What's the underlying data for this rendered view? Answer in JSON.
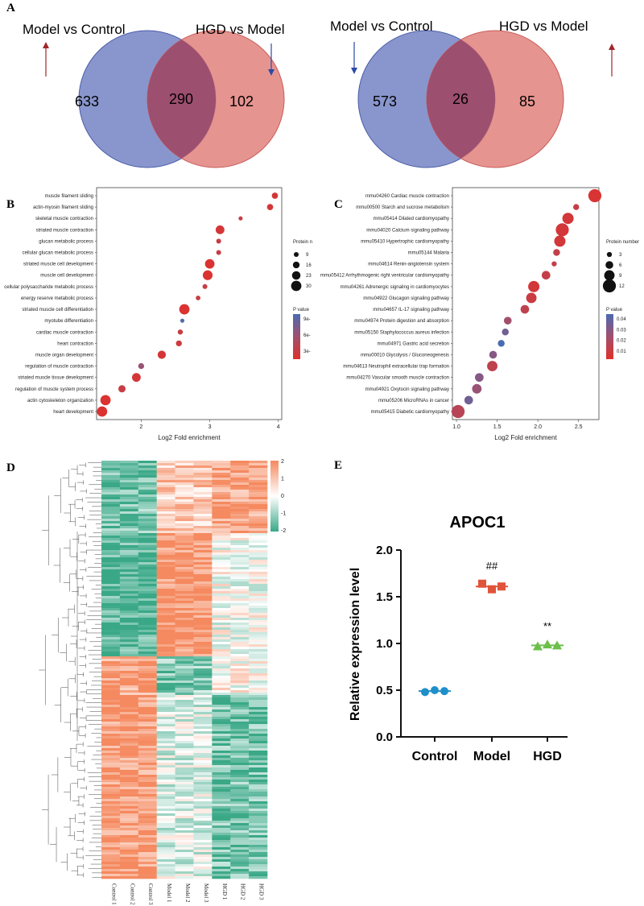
{
  "panels": {
    "a": "A",
    "b": "B",
    "c": "C",
    "d": "D",
    "e": "E"
  },
  "venn_up": {
    "left_label": "Model vs Control",
    "right_label": "HGD vs Model",
    "left_only": "633",
    "overlap": "290",
    "right_only": "102",
    "left_arrow": "up",
    "right_arrow": "down"
  },
  "venn_down": {
    "left_label": "Model vs Control",
    "right_label": "HGD vs Model",
    "left_only": "573",
    "overlap": "26",
    "right_only": "85",
    "left_arrow": "down",
    "right_arrow": "up"
  },
  "colors": {
    "venn_left": "#6f7fc2",
    "venn_right": "#e07c78",
    "venn_overlap": "#9a4c6e",
    "arrow_up": "#a0262a",
    "arrow_down": "#2a4aa8",
    "heat_high": "#f5895f",
    "heat_mid": "#ffffff",
    "heat_low": "#3aa887",
    "control": "#1f8fc9",
    "model": "#e0543a",
    "hgd": "#6cbf4a"
  },
  "chart_data": [
    {
      "id": "B",
      "type": "scatter",
      "xlabel": "Log2 Fold enrichment",
      "xlim": [
        1.35,
        4.05
      ],
      "xticks": [
        "2",
        "3",
        "4"
      ],
      "size_legend_title": "Protein n",
      "size_legend": [
        "9",
        "16",
        "23",
        "30"
      ],
      "color_legend_title": "P value",
      "color_legend": [
        "9e-",
        "6e-",
        "3e-"
      ],
      "terms": [
        {
          "label": "muscle filament sliding",
          "x": 3.95,
          "size": 14,
          "p": 0.1
        },
        {
          "label": "actin-myosin filament sliding",
          "x": 3.88,
          "size": 14,
          "p": 0.1
        },
        {
          "label": "skeletal muscle contraction",
          "x": 3.45,
          "size": 6,
          "p": 0.2
        },
        {
          "label": "striated muscle contraction",
          "x": 3.15,
          "size": 24,
          "p": 0.1
        },
        {
          "label": "glucan metabolic process",
          "x": 3.13,
          "size": 9,
          "p": 0.2
        },
        {
          "label": "cellular glucan metabolic process",
          "x": 3.13,
          "size": 9,
          "p": 0.2
        },
        {
          "label": "striated muscle cell development",
          "x": 3.0,
          "size": 27,
          "p": 0.05
        },
        {
          "label": "muscle cell development",
          "x": 2.97,
          "size": 28,
          "p": 0.05
        },
        {
          "label": "cellular polysaccharide metabolic process",
          "x": 2.93,
          "size": 9,
          "p": 0.2
        },
        {
          "label": "energy reserve metabolic process",
          "x": 2.83,
          "size": 8,
          "p": 0.2
        },
        {
          "label": "striated muscle cell differentiation",
          "x": 2.63,
          "size": 30,
          "p": 0.05
        },
        {
          "label": "myotube differentiation",
          "x": 2.6,
          "size": 6,
          "p": 0.95
        },
        {
          "label": "cardiac muscle contraction",
          "x": 2.57,
          "size": 10,
          "p": 0.2
        },
        {
          "label": "heart contraction",
          "x": 2.55,
          "size": 13,
          "p": 0.15
        },
        {
          "label": "muscle organ development",
          "x": 2.3,
          "size": 22,
          "p": 0.1
        },
        {
          "label": "regulation of muscle contraction",
          "x": 2.0,
          "size": 13,
          "p": 0.55
        },
        {
          "label": "striated muscle tissue development",
          "x": 1.93,
          "size": 24,
          "p": 0.1
        },
        {
          "label": "regulation of muscle system process",
          "x": 1.72,
          "size": 18,
          "p": 0.2
        },
        {
          "label": "actin cytoskeleton organization",
          "x": 1.48,
          "size": 30,
          "p": 0.05
        },
        {
          "label": "heart development",
          "x": 1.43,
          "size": 30,
          "p": 0.05
        }
      ]
    },
    {
      "id": "C",
      "type": "scatter",
      "xlabel": "Log2 Fold enrichment",
      "xlim": [
        0.95,
        2.75
      ],
      "xticks": [
        "1.0",
        "1.5",
        "2.0",
        "2.5"
      ],
      "size_legend_title": "Protein number",
      "size_legend": [
        "3",
        "6",
        "9",
        "12"
      ],
      "color_legend_title": "P value",
      "color_legend": [
        "0.04",
        "0.03",
        "0.02",
        "0.01"
      ],
      "terms": [
        {
          "label": "mmu04260 Cardiac muscle contraction",
          "x": 2.7,
          "size": 12,
          "p": 0.003
        },
        {
          "label": "mmu00500 Starch and sucrose metabolism",
          "x": 2.47,
          "size": 4,
          "p": 0.01
        },
        {
          "label": "mmu05414 Dilated cardiomyopathy",
          "x": 2.37,
          "size": 10,
          "p": 0.005
        },
        {
          "label": "mmu04020 Calcium signaling pathway",
          "x": 2.3,
          "size": 12,
          "p": 0.005
        },
        {
          "label": "mmu05410 Hypertrophic cardiomyopathy",
          "x": 2.27,
          "size": 10,
          "p": 0.005
        },
        {
          "label": "mmu05144 Malaria",
          "x": 2.23,
          "size": 5,
          "p": 0.01
        },
        {
          "label": "mmu04614 Renin-angiotensin system",
          "x": 2.2,
          "size": 3,
          "p": 0.01
        },
        {
          "label": "mmu05412 Arrhythmogenic right ventricular cardiomyopathy",
          "x": 2.1,
          "size": 7,
          "p": 0.01
        },
        {
          "label": "mmu04261 Adrenergic signaling in cardiomyocytes",
          "x": 1.95,
          "size": 10,
          "p": 0.005
        },
        {
          "label": "mmu04922 Glucagon signaling pathway",
          "x": 1.92,
          "size": 9,
          "p": 0.008
        },
        {
          "label": "mmu04657 IL-17 signaling pathway",
          "x": 1.84,
          "size": 7,
          "p": 0.012
        },
        {
          "label": "mmu04974 Protein digestion and absorption",
          "x": 1.63,
          "size": 6,
          "p": 0.022
        },
        {
          "label": "mmu05150 Staphylococcus aureus infection",
          "x": 1.6,
          "size": 5,
          "p": 0.035
        },
        {
          "label": "mmu04971 Gastric acid secretion",
          "x": 1.55,
          "size": 5,
          "p": 0.045
        },
        {
          "label": "mmu00010 Glycolysis / Gluconeogenesis",
          "x": 1.45,
          "size": 6,
          "p": 0.03
        },
        {
          "label": "mmu04613 Neutrophil extracellular trap formation",
          "x": 1.44,
          "size": 9,
          "p": 0.012
        },
        {
          "label": "mmu04270 Vascular smooth muscle contraction",
          "x": 1.28,
          "size": 7,
          "p": 0.03
        },
        {
          "label": "mmu04921 Oxytocin signaling pathway",
          "x": 1.25,
          "size": 8,
          "p": 0.025
        },
        {
          "label": "mmu05206 MicroRNAs in cancer",
          "x": 1.15,
          "size": 7,
          "p": 0.035
        },
        {
          "label": "mmu05415 Diabetic cardiomyopathy",
          "x": 1.02,
          "size": 12,
          "p": 0.015
        }
      ]
    },
    {
      "id": "D",
      "type": "heatmap",
      "columns": [
        "Control 1",
        "Control 2",
        "Control 3",
        "Model 1",
        "Model 2",
        "Model 3",
        "HGD 1",
        "HGD 2",
        "HGD 3"
      ],
      "color_scale": [
        "2",
        "1",
        "0",
        "-1",
        "-2"
      ],
      "row_blocks": [
        {
          "rows_fraction": 0.175,
          "pattern": [
            -0.9,
            -0.9,
            -0.9,
            0.6,
            0.6,
            0.6,
            1.0,
            1.0,
            1.0
          ]
        },
        {
          "rows_fraction": 0.295,
          "pattern": [
            -1.1,
            -1.1,
            -1.1,
            1.2,
            1.2,
            1.2,
            0.0,
            0.0,
            0.0
          ]
        },
        {
          "rows_fraction": 0.09,
          "pattern": [
            1.0,
            1.0,
            1.0,
            -0.8,
            -0.8,
            -0.8,
            0.1,
            0.1,
            0.1
          ]
        },
        {
          "rows_fraction": 0.44,
          "pattern": [
            1.1,
            1.1,
            1.1,
            -0.2,
            -0.2,
            -0.2,
            -0.9,
            -0.9,
            -0.9
          ]
        }
      ]
    },
    {
      "id": "E",
      "type": "scatter",
      "title": "APOC1",
      "ylabel": "Relative expression level",
      "ylim": [
        0,
        2.0
      ],
      "yticks": [
        "0.0",
        "0.5",
        "1.0",
        "1.5",
        "2.0"
      ],
      "categories": [
        "Control",
        "Model",
        "HGD"
      ],
      "series": [
        {
          "name": "Control",
          "marker": "circle",
          "values": [
            0.48,
            0.5,
            0.49
          ],
          "mean": 0.49,
          "sig": ""
        },
        {
          "name": "Model",
          "marker": "square",
          "values": [
            1.64,
            1.58,
            1.61
          ],
          "mean": 1.61,
          "sig": "##"
        },
        {
          "name": "HGD",
          "marker": "triangle",
          "values": [
            0.97,
            0.99,
            0.98
          ],
          "mean": 0.98,
          "sig": "**"
        }
      ]
    }
  ]
}
